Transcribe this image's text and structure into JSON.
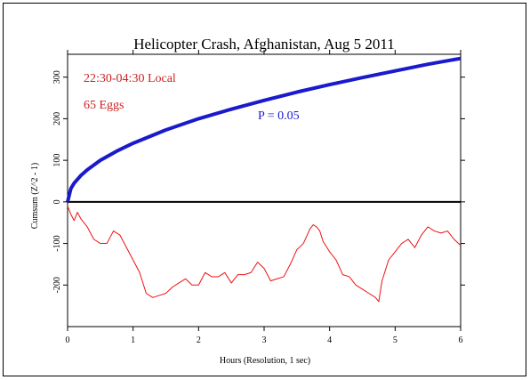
{
  "chart_data": {
    "type": "line",
    "title": "Helicopter Crash, Afghanistan, Aug 5 2011",
    "xlabel": "Hours (Resolution, 1 sec)",
    "ylabel": "Cumsum (Z^2 - 1)",
    "xlim": [
      0,
      6
    ],
    "ylim": [
      -300,
      355
    ],
    "xticks": [
      0,
      1,
      2,
      3,
      4,
      5,
      6
    ],
    "yticks": [
      -200,
      -100,
      0,
      100,
      200,
      300
    ],
    "grid": false,
    "annotations": [
      {
        "text": "22:30-04:30 Local",
        "color": "#cc2222"
      },
      {
        "text": "65 Eggs",
        "color": "#cc2222"
      },
      {
        "text": "P = 0.05",
        "color": "#1a1acc"
      }
    ],
    "series": [
      {
        "role": "p-envelope",
        "color": "#1a1acc",
        "x": [
          0,
          0.05,
          0.1,
          0.2,
          0.3,
          0.5,
          0.75,
          1.0,
          1.5,
          2.0,
          2.5,
          3.0,
          3.5,
          4.0,
          4.5,
          5.0,
          5.5,
          6.0
        ],
        "y": [
          0,
          32,
          45,
          63,
          77,
          100,
          122,
          141,
          173,
          200,
          223,
          244,
          264,
          282,
          299,
          315,
          331,
          345
        ]
      },
      {
        "role": "cumulative-deviation",
        "color": "#ee1111",
        "x": [
          0,
          0.05,
          0.1,
          0.15,
          0.2,
          0.3,
          0.4,
          0.5,
          0.6,
          0.7,
          0.8,
          0.9,
          1.0,
          1.1,
          1.2,
          1.3,
          1.4,
          1.5,
          1.6,
          1.7,
          1.8,
          1.9,
          2.0,
          2.1,
          2.2,
          2.3,
          2.4,
          2.5,
          2.6,
          2.7,
          2.8,
          2.9,
          3.0,
          3.1,
          3.2,
          3.3,
          3.4,
          3.5,
          3.6,
          3.7,
          3.75,
          3.8,
          3.85,
          3.9,
          4.0,
          4.1,
          4.2,
          4.3,
          4.4,
          4.5,
          4.6,
          4.7,
          4.75,
          4.8,
          4.9,
          5.0,
          5.1,
          5.2,
          5.3,
          5.4,
          5.5,
          5.6,
          5.7,
          5.8,
          5.9,
          6.0
        ],
        "y": [
          -10,
          -30,
          -45,
          -25,
          -40,
          -60,
          -90,
          -100,
          -100,
          -70,
          -80,
          -110,
          -140,
          -170,
          -220,
          -230,
          -225,
          -220,
          -205,
          -195,
          -185,
          -200,
          -200,
          -170,
          -180,
          -180,
          -170,
          -195,
          -175,
          -175,
          -170,
          -145,
          -160,
          -190,
          -185,
          -180,
          -150,
          -115,
          -100,
          -65,
          -55,
          -60,
          -70,
          -95,
          -120,
          -140,
          -175,
          -180,
          -200,
          -210,
          -220,
          -230,
          -240,
          -190,
          -140,
          -120,
          -100,
          -90,
          -110,
          -80,
          -60,
          -70,
          -75,
          -70,
          -90,
          -105
        ]
      }
    ]
  }
}
